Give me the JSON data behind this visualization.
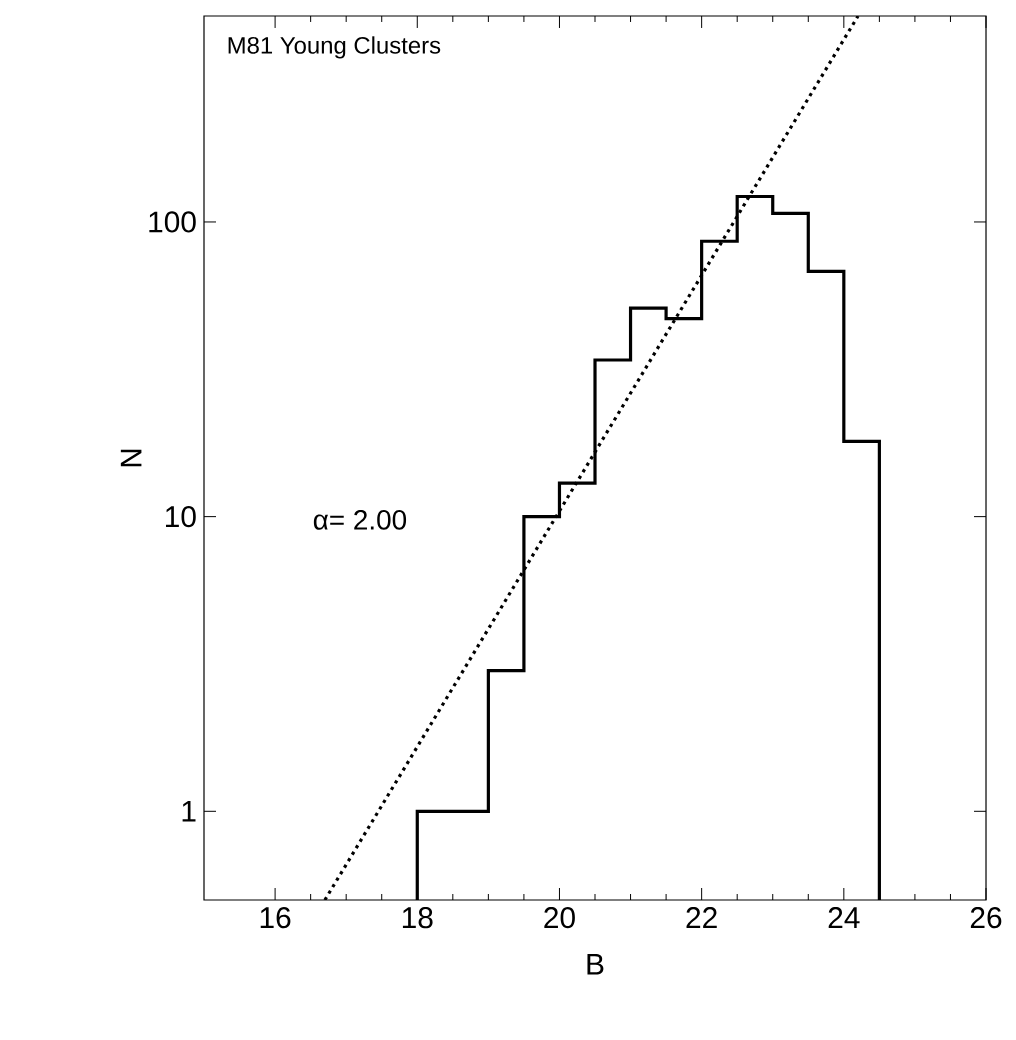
{
  "chart_data": {
    "type": "histogram",
    "title": "M81 Young Clusters",
    "xlabel": "B",
    "ylabel": "N",
    "color": "#000000",
    "bins": [
      18,
      18.5,
      19,
      19.5,
      20,
      20.5,
      21,
      21.5,
      22,
      22.5,
      23,
      23.5,
      24,
      24.5
    ],
    "values": [
      1,
      1,
      3,
      10,
      13,
      34,
      51,
      47,
      86,
      122,
      107,
      68,
      18
    ],
    "series": [
      {
        "type": "line",
        "color": "#000000",
        "line_style": "dotted",
        "x": [
          16.7,
          24.2
        ],
        "values": [
          0.5,
          500
        ]
      }
    ],
    "annotations": [
      "α= 2.00"
    ],
    "log": "y",
    "xlim": [
      15,
      26
    ],
    "ylim": [
      0.5,
      500
    ],
    "xticks": [
      16,
      18,
      20,
      22,
      24,
      26
    ],
    "yticks": [
      1,
      10,
      100
    ]
  }
}
